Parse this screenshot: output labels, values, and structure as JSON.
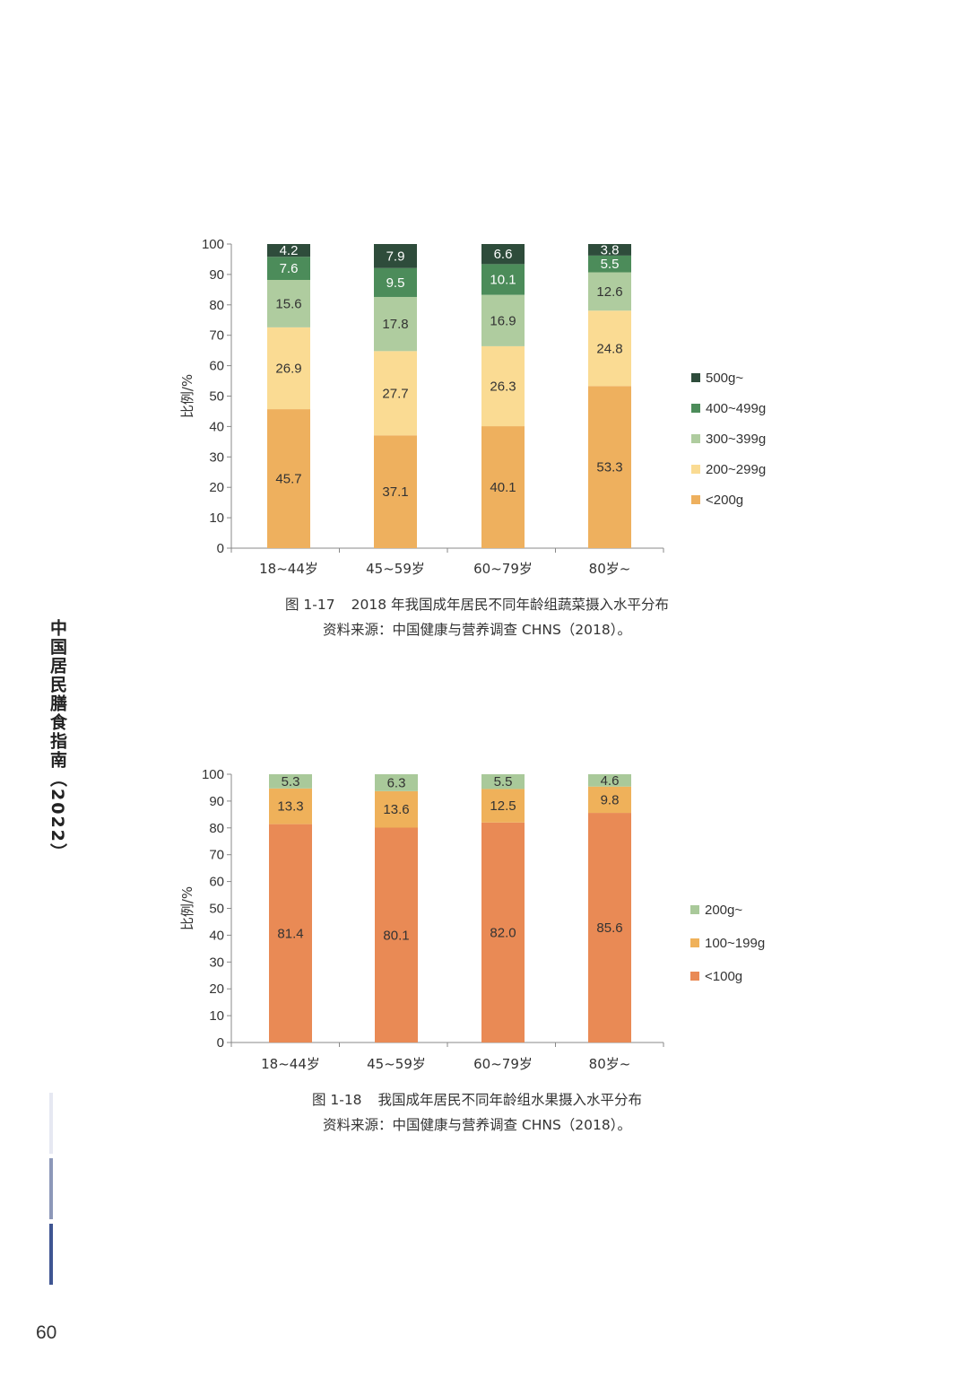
{
  "book_title": "中国居民膳食指南（2022）",
  "page_number": "60",
  "chart_data": [
    {
      "type": "bar",
      "stacked": true,
      "categories": [
        "18~44岁",
        "45~59岁",
        "60~79岁",
        "80岁~"
      ],
      "ylabel": "比例/%",
      "ylim": [
        0,
        100
      ],
      "yticks": [
        0,
        10,
        20,
        30,
        40,
        50,
        60,
        70,
        80,
        90,
        100
      ],
      "legend_position": "right",
      "series": [
        {
          "name": "<200g",
          "color": "#eeb05e",
          "label_color": "#333333",
          "values": [
            45.7,
            37.1,
            40.1,
            53.3
          ]
        },
        {
          "name": "200~299g",
          "color": "#fadb93",
          "label_color": "#333333",
          "values": [
            26.9,
            27.7,
            26.3,
            24.8
          ]
        },
        {
          "name": "300~399g",
          "color": "#afcc9f",
          "label_color": "#333333",
          "values": [
            15.6,
            17.8,
            16.9,
            12.6
          ]
        },
        {
          "name": "400~499g",
          "color": "#4c8c5a",
          "label_color": "#ffffff",
          "values": [
            7.6,
            9.5,
            10.1,
            5.5
          ]
        },
        {
          "name": "500g~",
          "color": "#2e4c3b",
          "label_color": "#ffffff",
          "values": [
            4.2,
            7.9,
            6.6,
            3.8
          ]
        }
      ],
      "caption_number": "图 1-17",
      "caption": "2018 年我国成年居民不同年龄组蔬菜摄入水平分布",
      "source": "资料来源：中国健康与营养调查 CHNS（2018）。"
    },
    {
      "type": "bar",
      "stacked": true,
      "categories": [
        "18~44岁",
        "45~59岁",
        "60~79岁",
        "80岁~"
      ],
      "ylabel": "比例/%",
      "ylim": [
        0,
        100
      ],
      "yticks": [
        0,
        10,
        20,
        30,
        40,
        50,
        60,
        70,
        80,
        90,
        100
      ],
      "legend_position": "right",
      "series": [
        {
          "name": "<100g",
          "color": "#e98a55",
          "label_color": "#333333",
          "values": [
            81.4,
            80.1,
            82.0,
            85.6
          ]
        },
        {
          "name": "100~199g",
          "color": "#efb15a",
          "label_color": "#333333",
          "values": [
            13.3,
            13.6,
            12.5,
            9.8
          ]
        },
        {
          "name": "200g~",
          "color": "#a9c99a",
          "label_color": "#333333",
          "values": [
            5.3,
            6.3,
            5.5,
            4.6
          ]
        }
      ],
      "caption_number": "图 1-18",
      "caption": "我国成年居民不同年龄组水果摄入水平分布",
      "source": "资料来源：中国健康与营养调查 CHNS（2018）。"
    }
  ]
}
